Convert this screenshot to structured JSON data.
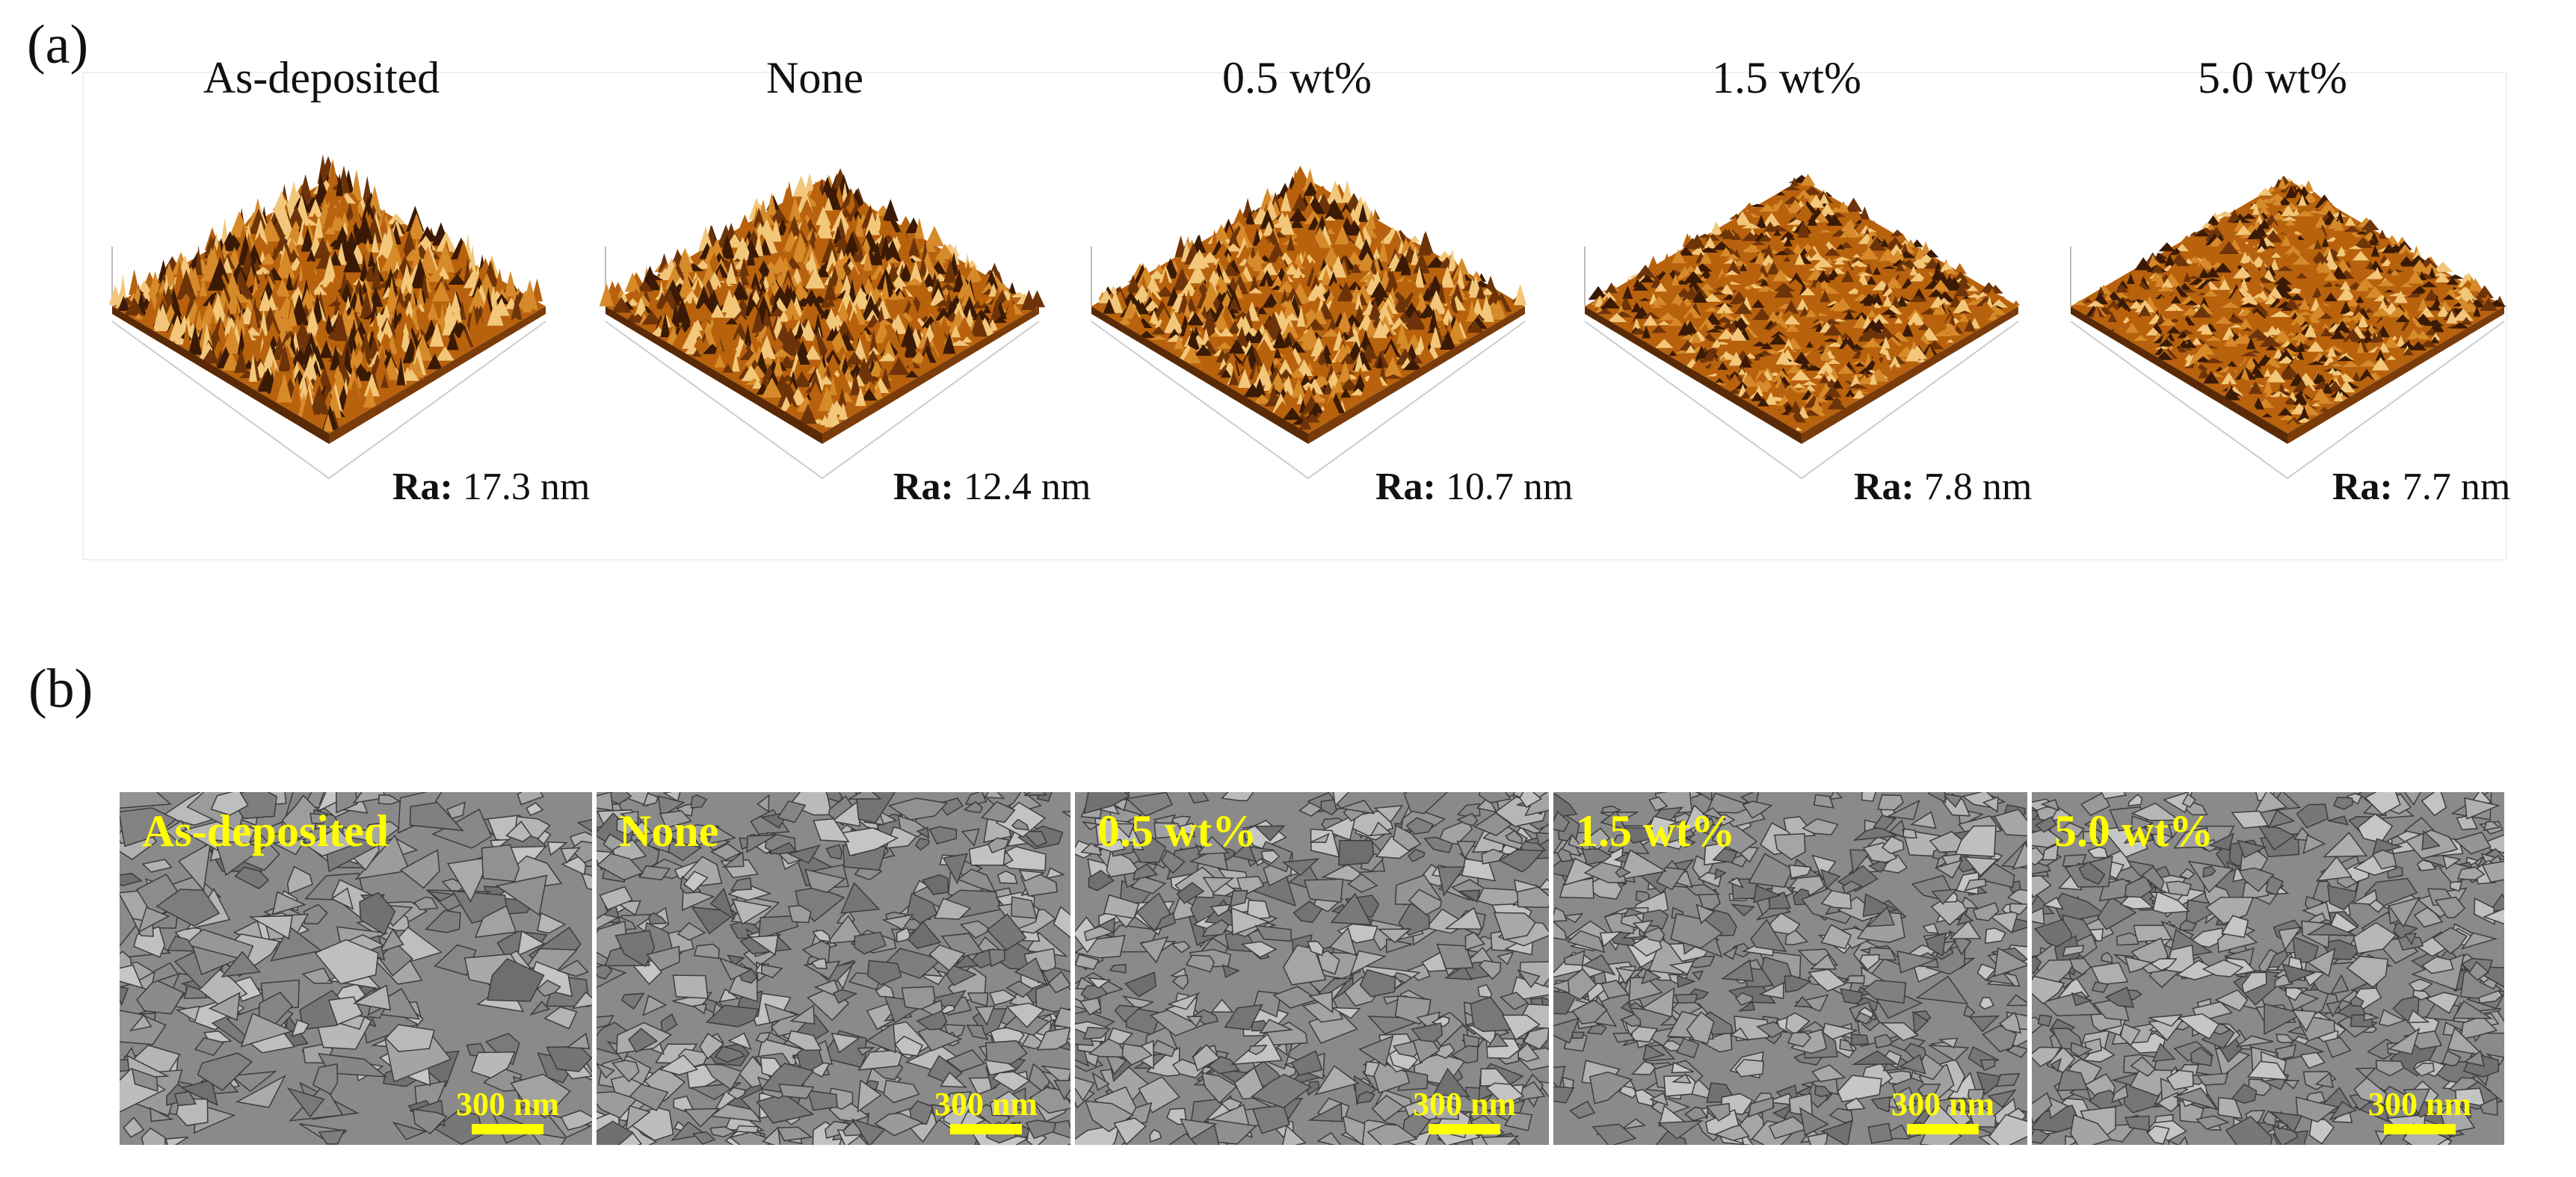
{
  "panel_a_label": "(a)",
  "panel_b_label": "(b)",
  "samples": [
    {
      "name": "As-deposited",
      "ra_label": "Ra:",
      "ra_value": "17.3 nm",
      "seed": 11
    },
    {
      "name": "None",
      "ra_label": "Ra:",
      "ra_value": "12.4 nm",
      "seed": 23
    },
    {
      "name": "0.5 wt%",
      "ra_label": "Ra:",
      "ra_value": "10.7 nm",
      "seed": 37
    },
    {
      "name": "1.5 wt%",
      "ra_label": "Ra:",
      "ra_value": "7.8 nm",
      "seed": 51
    },
    {
      "name": "5.0 wt%",
      "ra_label": "Ra:",
      "ra_value": "7.7 nm",
      "seed": 67
    }
  ],
  "scale_bar_label": "300 nm",
  "colors": {
    "afm_dark": "#3a1a05",
    "afm_mid": "#b8620e",
    "afm_light": "#f2c77a",
    "sem_label": "#ffff00",
    "sem_gray": "#8a8a8a"
  }
}
